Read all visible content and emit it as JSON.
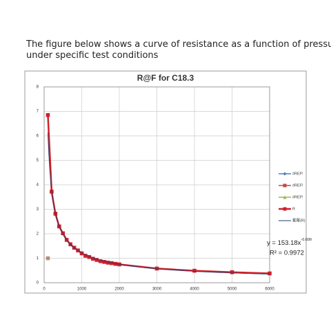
{
  "caption": [
    "The figure below shows a curve of resistance as a function of pressure",
    "under specific test conditions"
  ],
  "chart_data": {
    "type": "line",
    "title": "R@F  for C18.3",
    "xlim": [
      0,
      6000
    ],
    "xticks": [
      0,
      1000,
      2000,
      3000,
      4000,
      5000,
      6000
    ],
    "ylim": [
      0,
      8
    ],
    "yticks": [
      0,
      1,
      2,
      3,
      4,
      5,
      6,
      7,
      8
    ],
    "grid": true,
    "series": [
      {
        "name": "#REF!",
        "color": "#4a7ebb",
        "marker": "diamond",
        "x": [
          100
        ],
        "values": [
          1
        ]
      },
      {
        "name": "#REF!",
        "color": "#be4b48",
        "marker": "square",
        "x": [
          100
        ],
        "values": [
          1
        ]
      },
      {
        "name": "#REF!",
        "color": "#98b954",
        "marker": "triangle",
        "x": [
          100
        ],
        "values": [
          1
        ]
      },
      {
        "name": "R",
        "color": "#d0202a",
        "marker": "square",
        "x": [
          100,
          200,
          300,
          400,
          500,
          600,
          700,
          800,
          900,
          1000,
          1100,
          1200,
          1300,
          1400,
          1500,
          1600,
          1700,
          1800,
          1900,
          2000,
          3000,
          4000,
          5000,
          6000
        ],
        "values": [
          6.85,
          3.72,
          2.82,
          2.3,
          2.02,
          1.75,
          1.57,
          1.43,
          1.32,
          1.2,
          1.1,
          1.05,
          0.98,
          0.93,
          0.88,
          0.85,
          0.82,
          0.8,
          0.77,
          0.75,
          0.58,
          0.49,
          0.43,
          0.38
        ]
      }
    ],
    "trendline": {
      "name": "乘幂(R)",
      "color": "#1f3a6e",
      "prefix": "y = ",
      "coefficient": 153.18,
      "variable": "x",
      "exponent": -0.699,
      "r2_label": "R² = 0.9972"
    }
  }
}
